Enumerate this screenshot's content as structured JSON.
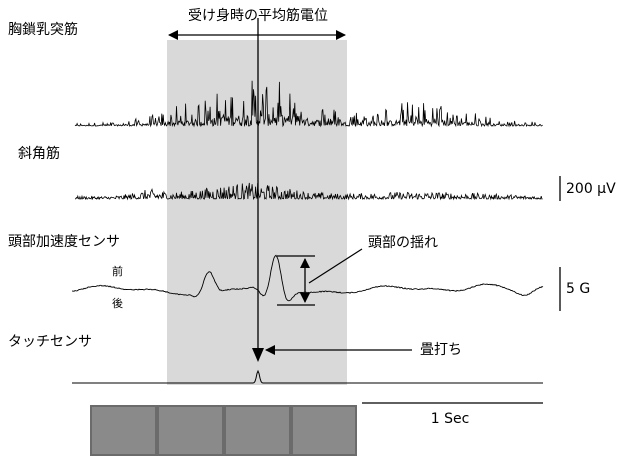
{
  "title": "受け身時の平均筋電位",
  "traces": [
    {
      "label": "胸鎖乳突筋"
    },
    {
      "label": "斜角筋"
    },
    {
      "label": "頭部加速度センサ",
      "upper": "前",
      "lower": "後"
    },
    {
      "label": "タッチセンサ"
    }
  ],
  "annotations": {
    "sway": "頭部の揺れ",
    "tap": "畳打ち"
  },
  "scale_bars": {
    "emg": "200 µV",
    "accel": "5 G",
    "time": "1 Sec"
  }
}
